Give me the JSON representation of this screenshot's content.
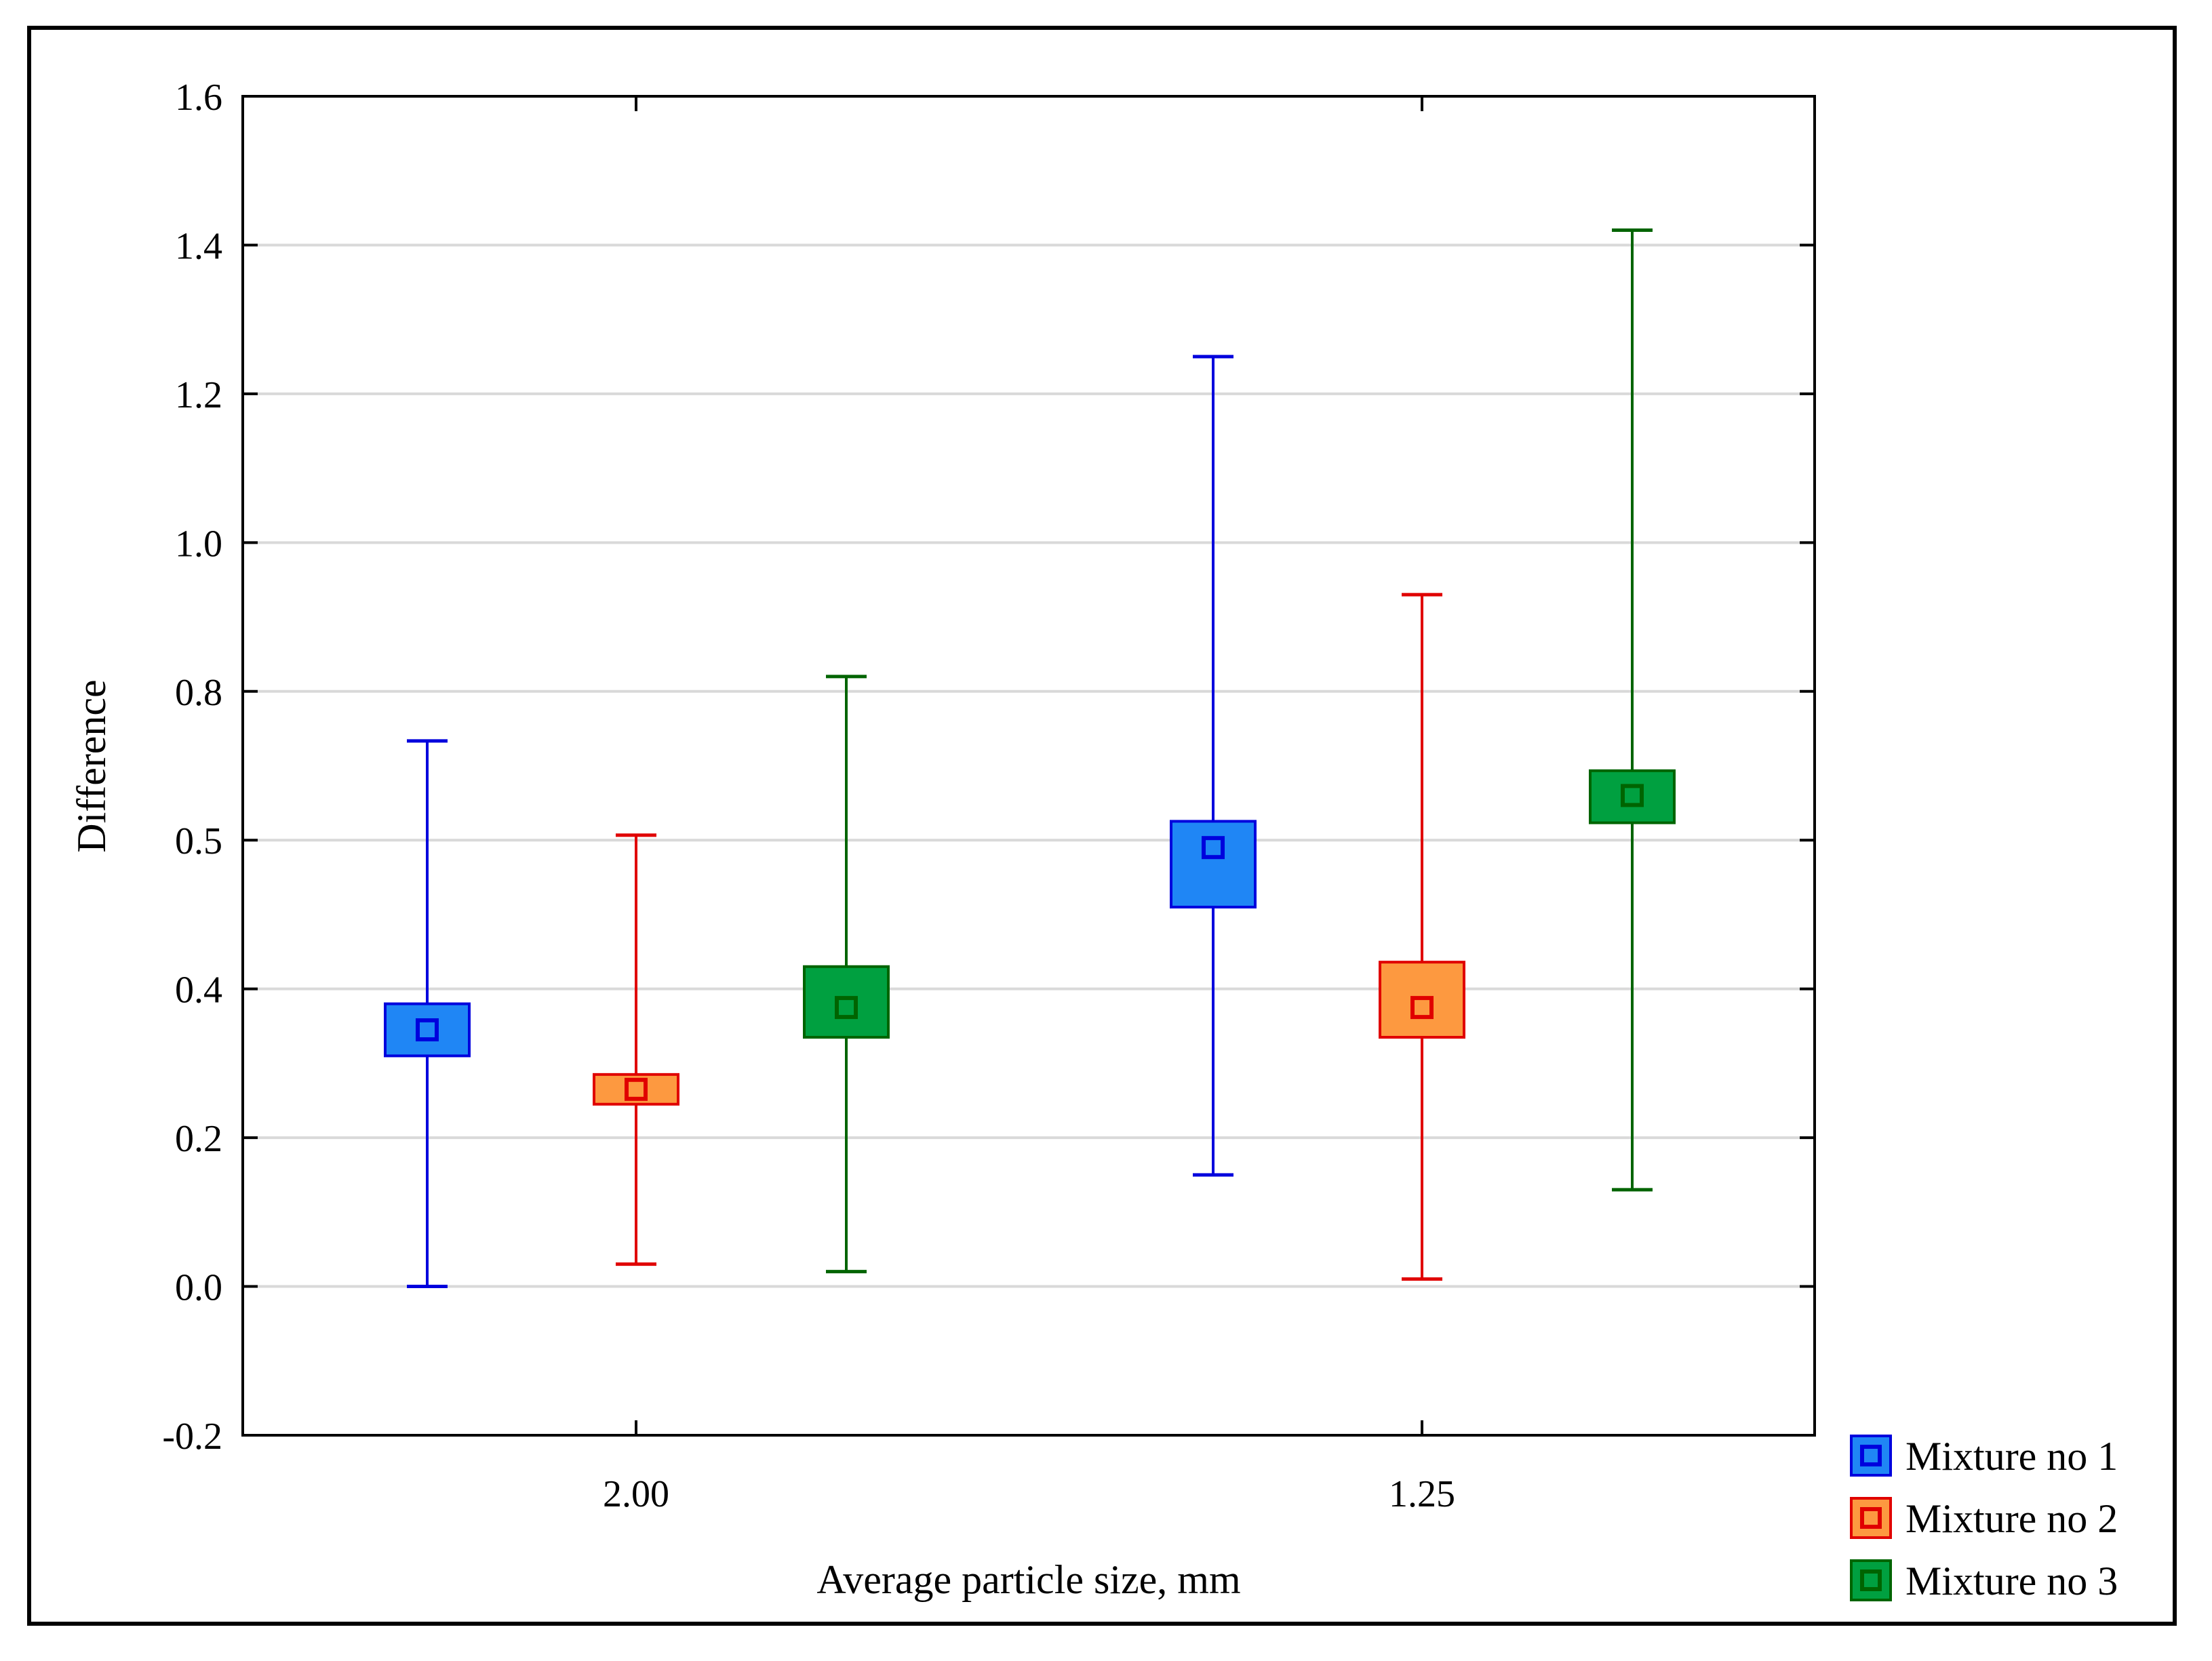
{
  "chart_data": {
    "type": "box",
    "title": "",
    "xlabel": "Average particle size, mm",
    "ylabel": "Difference",
    "categories": [
      "2.00",
      "1.25"
    ],
    "ylim": [
      -0.2,
      1.6
    ],
    "yticks": [
      -0.2,
      0.0,
      0.2,
      0.4,
      0.5,
      0.8,
      1.0,
      1.2,
      1.4,
      1.6
    ],
    "ytick_labels": [
      "-0.2",
      "0.0",
      "0.2",
      "0.4",
      "0.5",
      "0.8",
      "1.0",
      "1.2",
      "1.4",
      "1.6"
    ],
    "gridlines": true,
    "legend_position": "bottom-right outside",
    "series": [
      {
        "name": "Mixture no 1",
        "color": "#0000dd",
        "fill": "#1f86f5",
        "points": [
          {
            "category": "2.00",
            "mean": 0.345,
            "box_low": 0.31,
            "box_high": 0.38,
            "whisker_low": 0.0,
            "whisker_high": 0.7
          },
          {
            "category": "1.25",
            "mean": 0.495,
            "box_low": 0.455,
            "box_high": 0.538,
            "whisker_low": 0.15,
            "whisker_high": 1.25
          }
        ]
      },
      {
        "name": "Mixture no 2",
        "color": "#e00000",
        "fill": "#fd9940",
        "points": [
          {
            "category": "2.00",
            "mean": 0.265,
            "box_low": 0.245,
            "box_high": 0.285,
            "whisker_low": 0.03,
            "whisker_high": 0.51
          },
          {
            "category": "1.25",
            "mean": 0.375,
            "box_low": 0.335,
            "box_high": 0.418,
            "whisker_low": 0.01,
            "whisker_high": 0.93
          }
        ]
      },
      {
        "name": "Mixture no 3",
        "color": "#006400",
        "fill": "#00a040",
        "points": [
          {
            "category": "2.00",
            "mean": 0.375,
            "box_low": 0.335,
            "box_high": 0.415,
            "whisker_low": 0.02,
            "whisker_high": 0.82
          },
          {
            "category": "1.25",
            "mean": 0.59,
            "box_low": 0.535,
            "box_high": 0.64,
            "whisker_low": 0.13,
            "whisker_high": 1.42
          }
        ]
      }
    ]
  }
}
